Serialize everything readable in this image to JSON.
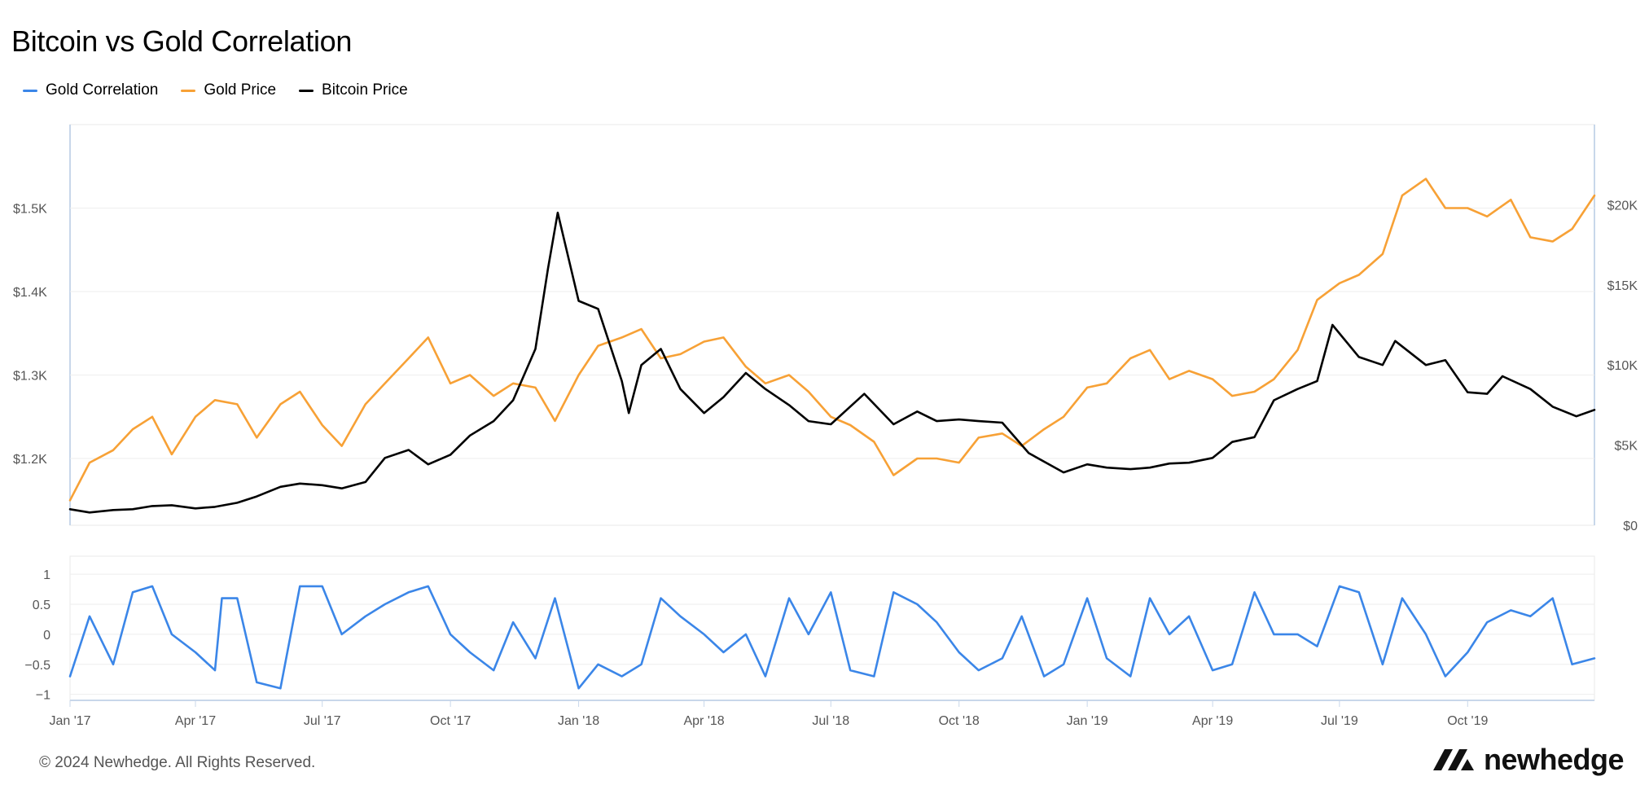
{
  "title": "Bitcoin vs Gold Correlation",
  "legend": [
    {
      "label": "Gold Correlation",
      "color": "#3b86e8"
    },
    {
      "label": "Gold Price",
      "color": "#f7a136"
    },
    {
      "label": "Bitcoin Price",
      "color": "#000000"
    }
  ],
  "footer": "© 2024 Newhedge. All Rights Reserved.",
  "brand": {
    "name": "newhedge",
    "icon": "newhedge-logo-icon"
  },
  "chart_data": [
    {
      "type": "line",
      "x_type": "date",
      "xlim": [
        "2017-01-01",
        "2019-12-31"
      ],
      "x_tick_labels": [
        "Jan '17",
        "Apr '17",
        "Jul '17",
        "Oct '17",
        "Jan '18",
        "Apr '18",
        "Jul '18",
        "Oct '18",
        "Jan '19",
        "Apr '19",
        "Jul '19",
        "Oct '19"
      ],
      "left_axis": {
        "ylim": [
          1120,
          1600
        ],
        "tick_values": [
          1200,
          1300,
          1400,
          1500
        ],
        "tick_labels": [
          "$1.2K",
          "$1.3K",
          "$1.4K",
          "$1.5K"
        ]
      },
      "right_axis": {
        "ylim": [
          0,
          25000
        ],
        "tick_values": [
          0,
          5000,
          10000,
          15000,
          20000
        ],
        "tick_labels": [
          "$0",
          "$5K",
          "$10K",
          "$15K",
          "$20K"
        ]
      },
      "grid": true,
      "legend_position": "top-left",
      "series": [
        {
          "name": "Gold Price",
          "axis": "left",
          "color": "#f7a136",
          "points": [
            [
              "2017-01-01",
              1150
            ],
            [
              "2017-01-15",
              1195
            ],
            [
              "2017-02-01",
              1210
            ],
            [
              "2017-02-15",
              1235
            ],
            [
              "2017-03-01",
              1250
            ],
            [
              "2017-03-15",
              1205
            ],
            [
              "2017-04-01",
              1250
            ],
            [
              "2017-04-15",
              1270
            ],
            [
              "2017-05-01",
              1265
            ],
            [
              "2017-05-15",
              1225
            ],
            [
              "2017-06-01",
              1265
            ],
            [
              "2017-06-15",
              1280
            ],
            [
              "2017-07-01",
              1240
            ],
            [
              "2017-07-15",
              1215
            ],
            [
              "2017-08-01",
              1265
            ],
            [
              "2017-08-15",
              1290
            ],
            [
              "2017-09-01",
              1320
            ],
            [
              "2017-09-15",
              1345
            ],
            [
              "2017-10-01",
              1290
            ],
            [
              "2017-10-15",
              1300
            ],
            [
              "2017-11-01",
              1275
            ],
            [
              "2017-11-15",
              1290
            ],
            [
              "2017-12-01",
              1285
            ],
            [
              "2017-12-15",
              1245
            ],
            [
              "2018-01-01",
              1300
            ],
            [
              "2018-01-15",
              1335
            ],
            [
              "2018-02-01",
              1345
            ],
            [
              "2018-02-15",
              1355
            ],
            [
              "2018-03-01",
              1320
            ],
            [
              "2018-03-15",
              1325
            ],
            [
              "2018-04-01",
              1340
            ],
            [
              "2018-04-15",
              1345
            ],
            [
              "2018-05-01",
              1310
            ],
            [
              "2018-05-15",
              1290
            ],
            [
              "2018-06-01",
              1300
            ],
            [
              "2018-06-15",
              1280
            ],
            [
              "2018-07-01",
              1250
            ],
            [
              "2018-07-15",
              1240
            ],
            [
              "2018-08-01",
              1220
            ],
            [
              "2018-08-15",
              1180
            ],
            [
              "2018-09-01",
              1200
            ],
            [
              "2018-09-15",
              1200
            ],
            [
              "2018-10-01",
              1195
            ],
            [
              "2018-10-15",
              1225
            ],
            [
              "2018-11-01",
              1230
            ],
            [
              "2018-11-15",
              1215
            ],
            [
              "2018-12-01",
              1235
            ],
            [
              "2018-12-15",
              1250
            ],
            [
              "2019-01-01",
              1285
            ],
            [
              "2019-01-15",
              1290
            ],
            [
              "2019-02-01",
              1320
            ],
            [
              "2019-02-15",
              1330
            ],
            [
              "2019-03-01",
              1295
            ],
            [
              "2019-03-15",
              1305
            ],
            [
              "2019-04-01",
              1295
            ],
            [
              "2019-04-15",
              1275
            ],
            [
              "2019-05-01",
              1280
            ],
            [
              "2019-05-15",
              1295
            ],
            [
              "2019-06-01",
              1330
            ],
            [
              "2019-06-15",
              1390
            ],
            [
              "2019-07-01",
              1410
            ],
            [
              "2019-07-15",
              1420
            ],
            [
              "2019-08-01",
              1445
            ],
            [
              "2019-08-15",
              1515
            ],
            [
              "2019-09-01",
              1535
            ],
            [
              "2019-09-15",
              1500
            ],
            [
              "2019-10-01",
              1500
            ],
            [
              "2019-10-15",
              1490
            ],
            [
              "2019-11-01",
              1510
            ],
            [
              "2019-11-15",
              1465
            ],
            [
              "2019-12-01",
              1460
            ],
            [
              "2019-12-15",
              1475
            ],
            [
              "2019-12-31",
              1515
            ]
          ]
        },
        {
          "name": "Bitcoin Price",
          "axis": "right",
          "color": "#000000",
          "points": [
            [
              "2017-01-01",
              1000
            ],
            [
              "2017-01-15",
              800
            ],
            [
              "2017-02-01",
              950
            ],
            [
              "2017-02-15",
              1000
            ],
            [
              "2017-03-01",
              1200
            ],
            [
              "2017-03-15",
              1250
            ],
            [
              "2017-04-01",
              1050
            ],
            [
              "2017-04-15",
              1150
            ],
            [
              "2017-05-01",
              1400
            ],
            [
              "2017-05-15",
              1800
            ],
            [
              "2017-06-01",
              2400
            ],
            [
              "2017-06-15",
              2600
            ],
            [
              "2017-07-01",
              2500
            ],
            [
              "2017-07-15",
              2300
            ],
            [
              "2017-08-01",
              2700
            ],
            [
              "2017-08-15",
              4200
            ],
            [
              "2017-09-01",
              4700
            ],
            [
              "2017-09-15",
              3800
            ],
            [
              "2017-10-01",
              4400
            ],
            [
              "2017-10-15",
              5600
            ],
            [
              "2017-11-01",
              6500
            ],
            [
              "2017-11-15",
              7800
            ],
            [
              "2017-12-01",
              11000
            ],
            [
              "2017-12-10",
              16000
            ],
            [
              "2017-12-17",
              19500
            ],
            [
              "2018-01-01",
              14000
            ],
            [
              "2018-01-15",
              13500
            ],
            [
              "2018-02-01",
              9000
            ],
            [
              "2018-02-06",
              7000
            ],
            [
              "2018-02-15",
              10000
            ],
            [
              "2018-03-01",
              11000
            ],
            [
              "2018-03-15",
              8500
            ],
            [
              "2018-04-01",
              7000
            ],
            [
              "2018-04-15",
              8000
            ],
            [
              "2018-05-01",
              9500
            ],
            [
              "2018-05-15",
              8500
            ],
            [
              "2018-06-01",
              7500
            ],
            [
              "2018-06-15",
              6500
            ],
            [
              "2018-07-01",
              6300
            ],
            [
              "2018-07-25",
              8200
            ],
            [
              "2018-08-15",
              6300
            ],
            [
              "2018-09-01",
              7100
            ],
            [
              "2018-09-15",
              6500
            ],
            [
              "2018-10-01",
              6600
            ],
            [
              "2018-10-15",
              6500
            ],
            [
              "2018-11-01",
              6400
            ],
            [
              "2018-11-20",
              4500
            ],
            [
              "2018-12-15",
              3300
            ],
            [
              "2019-01-01",
              3800
            ],
            [
              "2019-01-15",
              3600
            ],
            [
              "2019-02-01",
              3500
            ],
            [
              "2019-02-15",
              3600
            ],
            [
              "2019-03-01",
              3850
            ],
            [
              "2019-03-15",
              3900
            ],
            [
              "2019-04-01",
              4200
            ],
            [
              "2019-04-15",
              5200
            ],
            [
              "2019-05-01",
              5500
            ],
            [
              "2019-05-15",
              7800
            ],
            [
              "2019-06-01",
              8500
            ],
            [
              "2019-06-15",
              9000
            ],
            [
              "2019-06-26",
              12500
            ],
            [
              "2019-07-15",
              10500
            ],
            [
              "2019-08-01",
              10000
            ],
            [
              "2019-08-10",
              11500
            ],
            [
              "2019-09-01",
              10000
            ],
            [
              "2019-09-15",
              10300
            ],
            [
              "2019-10-01",
              8300
            ],
            [
              "2019-10-15",
              8200
            ],
            [
              "2019-10-26",
              9300
            ],
            [
              "2019-11-15",
              8500
            ],
            [
              "2019-12-01",
              7400
            ],
            [
              "2019-12-18",
              6800
            ],
            [
              "2019-12-31",
              7200
            ]
          ]
        },
        {
          "name": "Gold Correlation",
          "axis": "correlation",
          "color": "#3b86e8",
          "points": [
            [
              "2017-01-01",
              -0.7
            ],
            [
              "2017-01-15",
              0.3
            ],
            [
              "2017-02-01",
              -0.5
            ],
            [
              "2017-02-15",
              0.7
            ],
            [
              "2017-03-01",
              0.8
            ],
            [
              "2017-03-15",
              0.0
            ],
            [
              "2017-04-01",
              -0.3
            ],
            [
              "2017-04-15",
              -0.6
            ],
            [
              "2017-04-20",
              0.6
            ],
            [
              "2017-05-01",
              0.6
            ],
            [
              "2017-05-15",
              -0.8
            ],
            [
              "2017-06-01",
              -0.9
            ],
            [
              "2017-06-15",
              0.8
            ],
            [
              "2017-07-01",
              0.8
            ],
            [
              "2017-07-15",
              0.0
            ],
            [
              "2017-08-01",
              0.3
            ],
            [
              "2017-08-15",
              0.5
            ],
            [
              "2017-09-01",
              0.7
            ],
            [
              "2017-09-15",
              0.8
            ],
            [
              "2017-10-01",
              0.0
            ],
            [
              "2017-10-15",
              -0.3
            ],
            [
              "2017-11-01",
              -0.6
            ],
            [
              "2017-11-15",
              0.2
            ],
            [
              "2017-12-01",
              -0.4
            ],
            [
              "2017-12-15",
              0.6
            ],
            [
              "2018-01-01",
              -0.9
            ],
            [
              "2018-01-15",
              -0.5
            ],
            [
              "2018-02-01",
              -0.7
            ],
            [
              "2018-02-15",
              -0.5
            ],
            [
              "2018-03-01",
              0.6
            ],
            [
              "2018-03-15",
              0.3
            ],
            [
              "2018-04-01",
              0.0
            ],
            [
              "2018-04-15",
              -0.3
            ],
            [
              "2018-05-01",
              0.0
            ],
            [
              "2018-05-15",
              -0.7
            ],
            [
              "2018-06-01",
              0.6
            ],
            [
              "2018-06-15",
              0.0
            ],
            [
              "2018-07-01",
              0.7
            ],
            [
              "2018-07-15",
              -0.6
            ],
            [
              "2018-08-01",
              -0.7
            ],
            [
              "2018-08-15",
              0.7
            ],
            [
              "2018-09-01",
              0.5
            ],
            [
              "2018-09-15",
              0.2
            ],
            [
              "2018-10-01",
              -0.3
            ],
            [
              "2018-10-15",
              -0.6
            ],
            [
              "2018-11-01",
              -0.4
            ],
            [
              "2018-11-15",
              0.3
            ],
            [
              "2018-12-01",
              -0.7
            ],
            [
              "2018-12-15",
              -0.5
            ],
            [
              "2019-01-01",
              0.6
            ],
            [
              "2019-01-15",
              -0.4
            ],
            [
              "2019-02-01",
              -0.7
            ],
            [
              "2019-02-15",
              0.6
            ],
            [
              "2019-03-01",
              0.0
            ],
            [
              "2019-03-15",
              0.3
            ],
            [
              "2019-04-01",
              -0.6
            ],
            [
              "2019-04-15",
              -0.5
            ],
            [
              "2019-05-01",
              0.7
            ],
            [
              "2019-05-15",
              0.0
            ],
            [
              "2019-06-01",
              0.0
            ],
            [
              "2019-06-15",
              -0.2
            ],
            [
              "2019-07-01",
              0.8
            ],
            [
              "2019-07-15",
              0.7
            ],
            [
              "2019-08-01",
              -0.5
            ],
            [
              "2019-08-15",
              0.6
            ],
            [
              "2019-09-01",
              0.0
            ],
            [
              "2019-09-15",
              -0.7
            ],
            [
              "2019-10-01",
              -0.3
            ],
            [
              "2019-10-15",
              0.2
            ],
            [
              "2019-11-01",
              0.4
            ],
            [
              "2019-11-15",
              0.3
            ],
            [
              "2019-12-01",
              0.6
            ],
            [
              "2019-12-15",
              -0.5
            ],
            [
              "2019-12-31",
              -0.4
            ]
          ]
        }
      ],
      "correlation_axis": {
        "ylim": [
          -1.1,
          1.3
        ],
        "tick_values": [
          1,
          0.5,
          0,
          -0.5,
          -1
        ],
        "tick_labels": [
          "1",
          "0.5",
          "0",
          "−0.5",
          "−1"
        ]
      }
    }
  ]
}
